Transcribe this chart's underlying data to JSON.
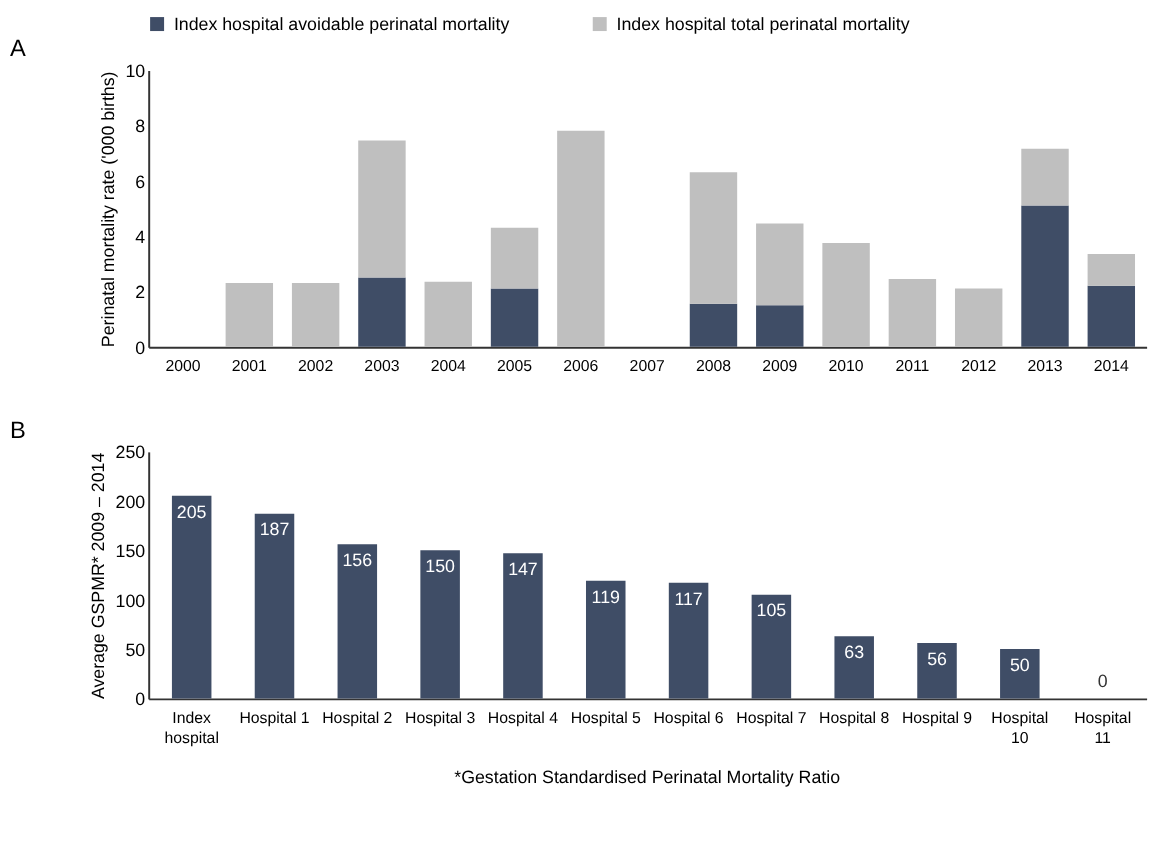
{
  "chart_data": [
    {
      "type": "bar",
      "stacked": true,
      "categories": [
        "2000",
        "2001",
        "2002",
        "2003",
        "2004",
        "2005",
        "2006",
        "2007",
        "2008",
        "2009",
        "2010",
        "2011",
        "2012",
        "2013",
        "2014"
      ],
      "series": [
        {
          "name": "Index hospital avoidable perinatal mortality",
          "color": "#3f4d66",
          "values": [
            0,
            0,
            0,
            2.5,
            0,
            2.1,
            0,
            0,
            1.55,
            1.5,
            0,
            0,
            0,
            5.1,
            2.2
          ]
        },
        {
          "name": "Index hospital total perinatal mortality",
          "color": "#bfbfbf",
          "values": [
            0,
            2.3,
            2.3,
            4.95,
            2.35,
            2.2,
            7.8,
            0,
            4.75,
            2.95,
            3.75,
            2.45,
            2.1,
            2.05,
            1.15
          ]
        }
      ],
      "ylabel": "Perinatal mortality rate ('000 births)",
      "ylim": [
        0,
        10
      ],
      "yticks": [
        0,
        2,
        4,
        6,
        8,
        10
      ],
      "grid": false,
      "legend": "top",
      "annotations": [
        "A"
      ]
    },
    {
      "type": "bar",
      "categories": [
        "Index hospital",
        "Hospital 1",
        "Hospital 2",
        "Hospital 3",
        "Hospital 4",
        "Hospital 5",
        "Hospital 6",
        "Hospital 7",
        "Hospital 8",
        "Hospital 9",
        "Hospital 10",
        "Hospital 11"
      ],
      "values": [
        205,
        187,
        156,
        150,
        147,
        119,
        117,
        105,
        63,
        56,
        50,
        0
      ],
      "color": "#3f4d66",
      "data_labels": true,
      "ylabel": "Average GSPMR* 2009 – 2014",
      "ylim": [
        0,
        250
      ],
      "yticks": [
        0,
        50,
        100,
        150,
        200,
        250
      ],
      "grid": false,
      "annotations": [
        "B",
        "*Gestation Standardised Perinatal Mortality Ratio"
      ]
    }
  ]
}
